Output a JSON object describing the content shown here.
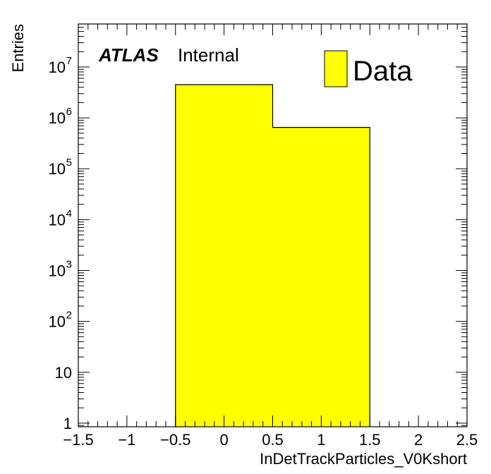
{
  "chart_data": {
    "type": "bar",
    "histogram": true,
    "bin_edges": [
      -0.5,
      0.5,
      1.5
    ],
    "values": [
      4500000,
      650000
    ],
    "series": [
      {
        "name": "Data",
        "values": [
          4500000,
          650000
        ],
        "color": "#ffff00"
      }
    ],
    "xlabel": "InDetTrackParticles_V0Kshort",
    "ylabel": "Entries",
    "xlim": [
      -1.5,
      2.5
    ],
    "ylim": [
      0.85,
      70000000
    ],
    "yscale": "log",
    "x_ticks": [
      {
        "value": -1.5,
        "label": "−1.5"
      },
      {
        "value": -1,
        "label": "−1"
      },
      {
        "value": -0.5,
        "label": "−0.5"
      },
      {
        "value": 0,
        "label": "0"
      },
      {
        "value": 0.5,
        "label": "0.5"
      },
      {
        "value": 1,
        "label": "1"
      },
      {
        "value": 1.5,
        "label": "1.5"
      },
      {
        "value": 2,
        "label": "2"
      },
      {
        "value": 2.5,
        "label": "2.5"
      }
    ],
    "y_ticks": [
      {
        "value": 1,
        "base": "1",
        "exp": ""
      },
      {
        "value": 10,
        "base": "10",
        "exp": ""
      },
      {
        "value": 100,
        "base": "10",
        "exp": "2"
      },
      {
        "value": 1000,
        "base": "10",
        "exp": "3"
      },
      {
        "value": 10000,
        "base": "10",
        "exp": "4"
      },
      {
        "value": 100000,
        "base": "10",
        "exp": "5"
      },
      {
        "value": 1000000,
        "base": "10",
        "exp": "6"
      },
      {
        "value": 10000000,
        "base": "10",
        "exp": "7"
      }
    ],
    "grid": false,
    "legend_placement": "top-right"
  },
  "labels": {
    "atlas": "ATLAS",
    "internal": "Internal"
  },
  "colors": {
    "fill": "#ffff00",
    "line": "#000000"
  }
}
